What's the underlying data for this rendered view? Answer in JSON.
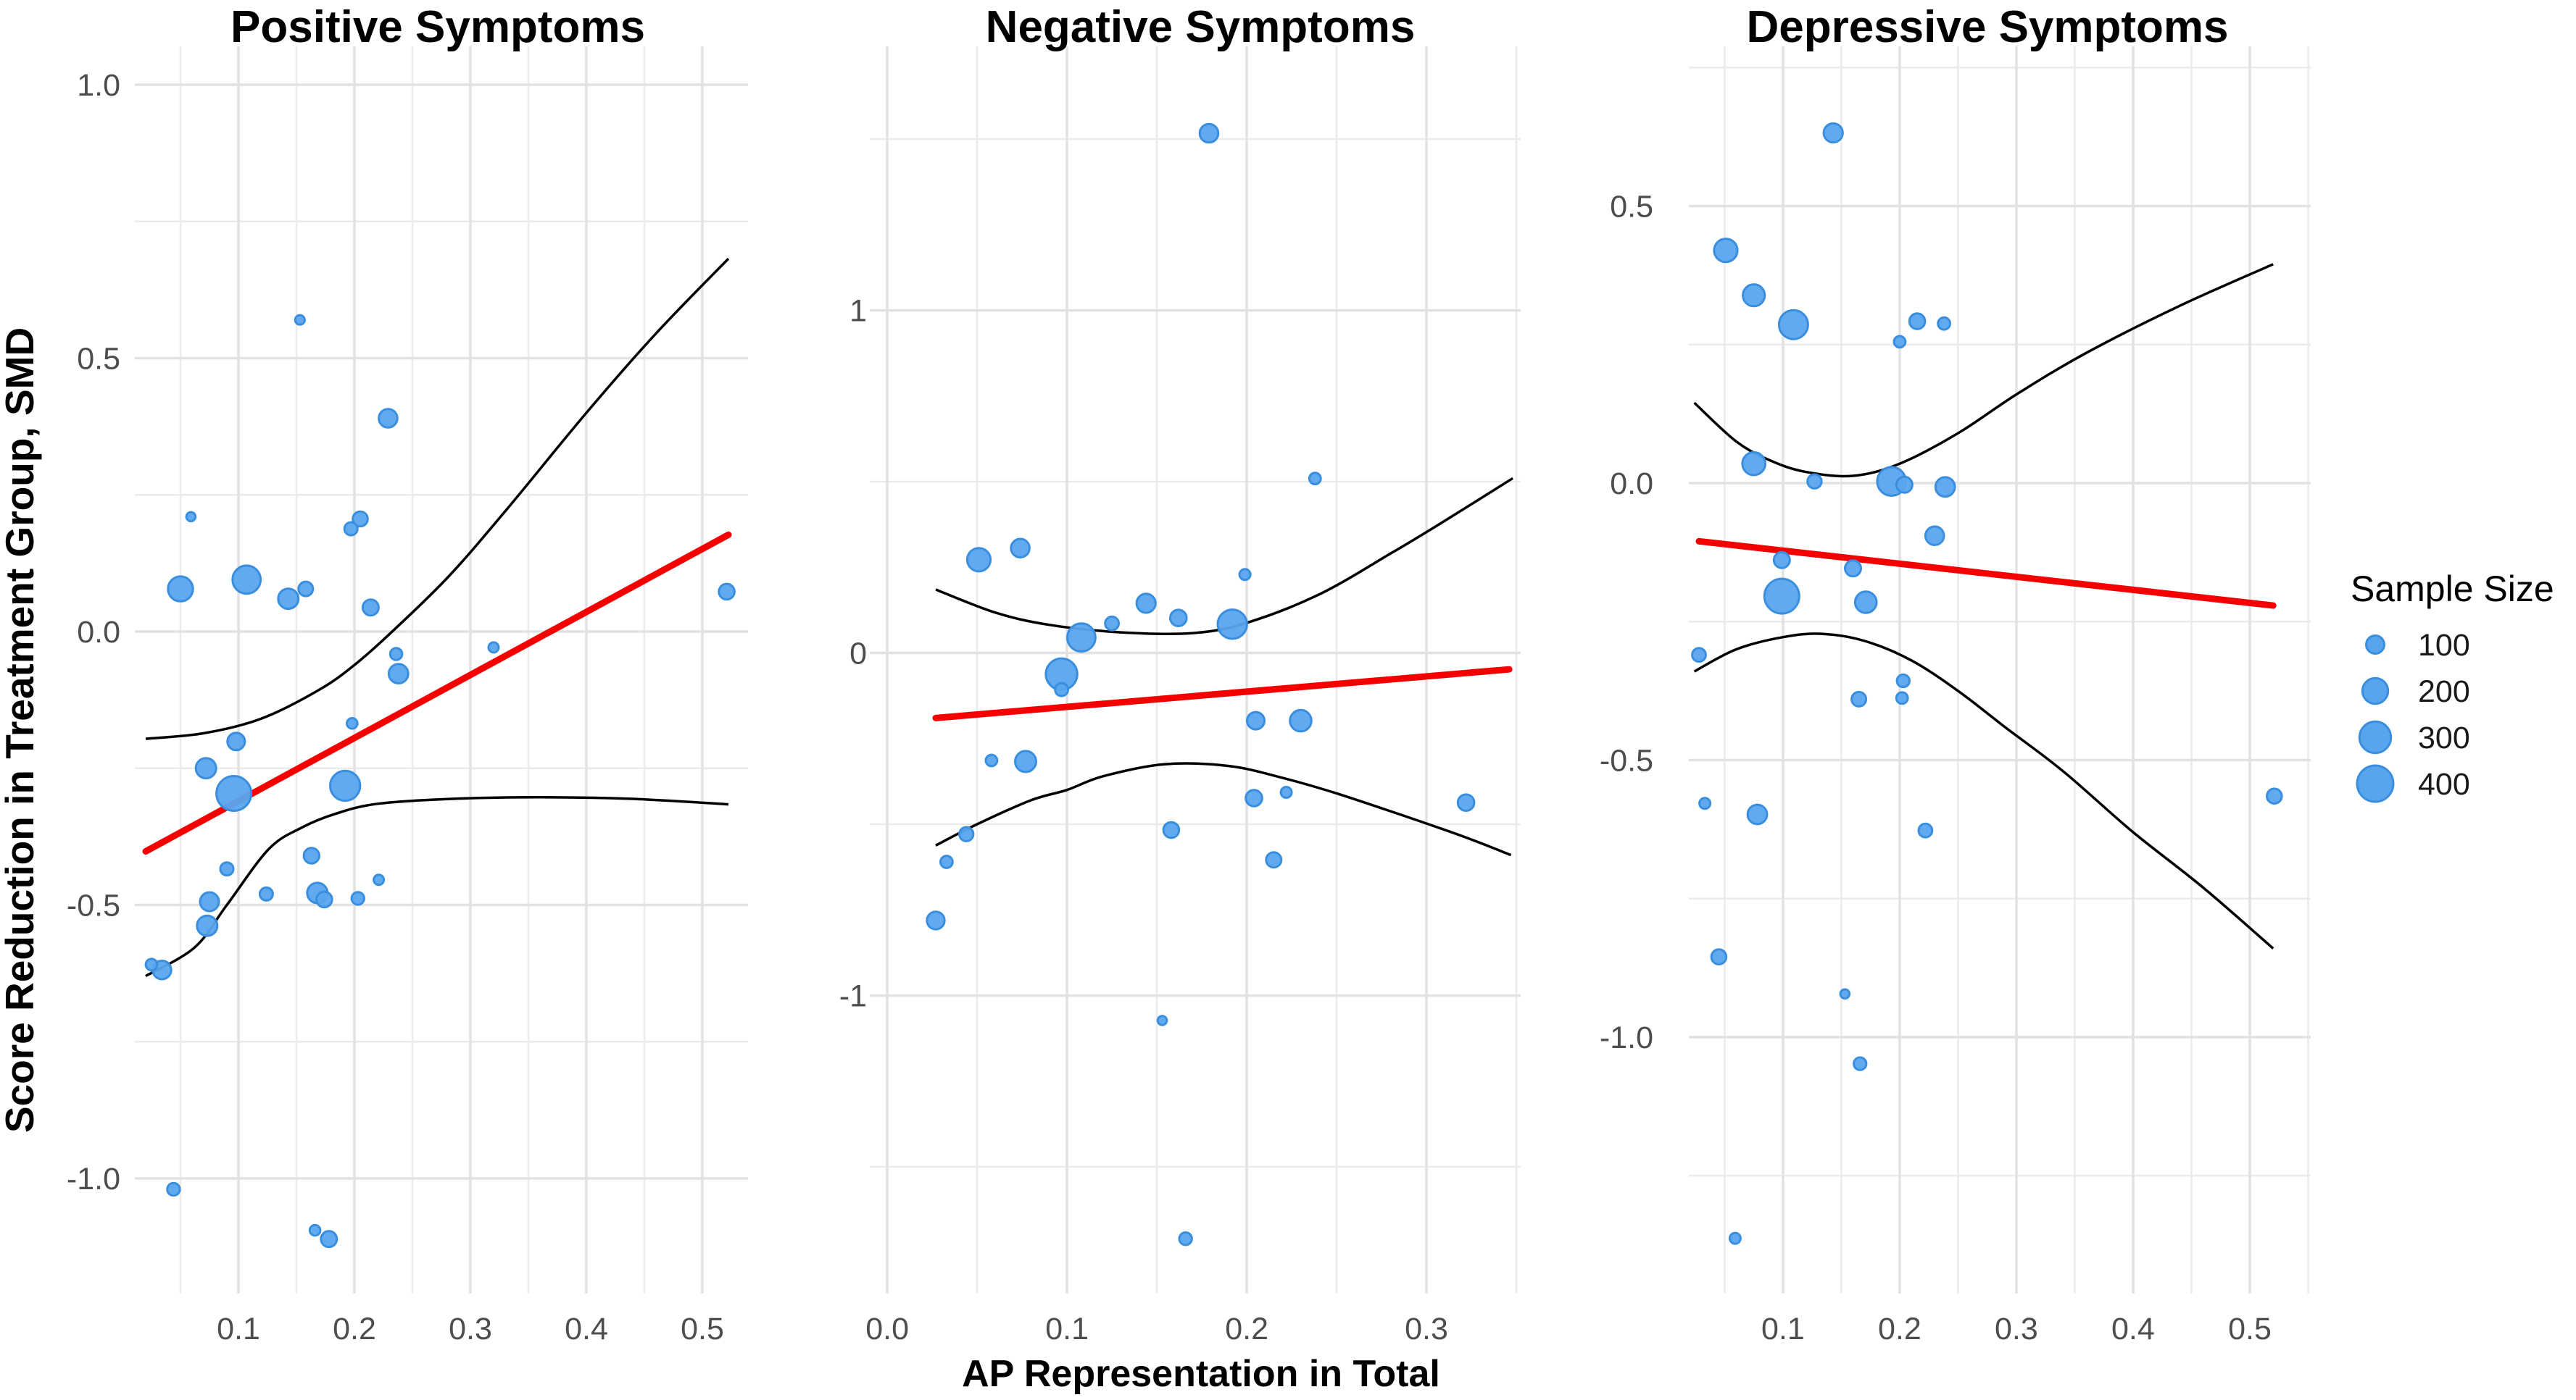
{
  "figure": {
    "y_axis_title": "Score Reduction in Treatment Group, SMD",
    "x_axis_title": "AP Representation in Total",
    "legend": {
      "title": "Sample Size",
      "items": [
        100,
        200,
        300,
        400
      ]
    },
    "colors": {
      "point_fill": "#58a5ee",
      "point_stroke": "#3a8ede",
      "regression": "#f40000",
      "ci_line": "#000000",
      "grid_major": "#e2e2e2",
      "grid_minor": "#ebebeb",
      "tick_text": "#4d4d4d",
      "background": "#ffffff"
    }
  },
  "chart_data": [
    {
      "type": "scatter",
      "title": "Positive Symptoms",
      "xlabel": "AP Representation in Total",
      "ylabel": "Score Reduction in Treatment Group, SMD",
      "xlim": [
        0.0106,
        0.5394
      ],
      "ylim": [
        -1.2106,
        1.0702
      ],
      "x_ticks": [
        {
          "v": 0.1,
          "label": "0.1"
        },
        {
          "v": 0.2,
          "label": "0.2"
        },
        {
          "v": 0.3,
          "label": "0.3"
        },
        {
          "v": 0.4,
          "label": "0.4"
        },
        {
          "v": 0.5,
          "label": "0.5"
        }
      ],
      "y_ticks": [
        {
          "v": 1.0,
          "label": "1.0"
        },
        {
          "v": 0.5,
          "label": "0.5"
        },
        {
          "v": 0.0,
          "label": "0.0"
        },
        {
          "v": -0.5,
          "label": "-0.5"
        },
        {
          "v": -1.0,
          "label": "-1.0"
        }
      ],
      "grid": true,
      "legend_position": "right-of-figure",
      "points": [
        {
          "x": 0.153,
          "y": 0.57,
          "n": 28
        },
        {
          "x": 0.229,
          "y": 0.39,
          "n": 105
        },
        {
          "x": 0.059,
          "y": 0.21,
          "n": 25
        },
        {
          "x": 0.205,
          "y": 0.206,
          "n": 68
        },
        {
          "x": 0.197,
          "y": 0.188,
          "n": 52
        },
        {
          "x": 0.05,
          "y": 0.078,
          "n": 190
        },
        {
          "x": 0.107,
          "y": 0.095,
          "n": 240
        },
        {
          "x": 0.143,
          "y": 0.06,
          "n": 125
        },
        {
          "x": 0.158,
          "y": 0.078,
          "n": 64
        },
        {
          "x": 0.214,
          "y": 0.044,
          "n": 77
        },
        {
          "x": 0.236,
          "y": -0.041,
          "n": 44
        },
        {
          "x": 0.238,
          "y": -0.077,
          "n": 115
        },
        {
          "x": 0.32,
          "y": -0.029,
          "n": 31
        },
        {
          "x": 0.521,
          "y": 0.073,
          "n": 75
        },
        {
          "x": 0.198,
          "y": -0.168,
          "n": 34
        },
        {
          "x": 0.098,
          "y": -0.201,
          "n": 92
        },
        {
          "x": 0.072,
          "y": -0.25,
          "n": 125
        },
        {
          "x": 0.096,
          "y": -0.296,
          "n": 370
        },
        {
          "x": 0.192,
          "y": -0.282,
          "n": 275
        },
        {
          "x": 0.163,
          "y": -0.41,
          "n": 73
        },
        {
          "x": 0.09,
          "y": -0.434,
          "n": 52
        },
        {
          "x": 0.124,
          "y": -0.48,
          "n": 52
        },
        {
          "x": 0.168,
          "y": -0.478,
          "n": 125
        },
        {
          "x": 0.174,
          "y": -0.49,
          "n": 74
        },
        {
          "x": 0.203,
          "y": -0.488,
          "n": 48
        },
        {
          "x": 0.221,
          "y": -0.454,
          "n": 31
        },
        {
          "x": 0.075,
          "y": -0.494,
          "n": 108
        },
        {
          "x": 0.073,
          "y": -0.538,
          "n": 125
        },
        {
          "x": 0.025,
          "y": -0.609,
          "n": 40
        },
        {
          "x": 0.034,
          "y": -0.619,
          "n": 105
        },
        {
          "x": 0.044,
          "y": -1.02,
          "n": 48
        },
        {
          "x": 0.166,
          "y": -1.095,
          "n": 34
        },
        {
          "x": 0.178,
          "y": -1.111,
          "n": 77
        }
      ],
      "regression": [
        [
          0.02,
          -0.402
        ],
        [
          0.5225,
          0.177
        ]
      ],
      "ci_upper": [
        [
          0.02,
          -0.196
        ],
        [
          0.07,
          -0.186
        ],
        [
          0.12,
          -0.159
        ],
        [
          0.17,
          -0.106
        ],
        [
          0.2,
          -0.061
        ],
        [
          0.23,
          -0.005
        ],
        [
          0.28,
          0.098
        ],
        [
          0.33,
          0.22
        ],
        [
          0.4,
          0.4
        ],
        [
          0.46,
          0.545
        ],
        [
          0.5225,
          0.682
        ]
      ],
      "ci_lower": [
        [
          0.02,
          -0.63
        ],
        [
          0.062,
          -0.578
        ],
        [
          0.09,
          -0.5
        ],
        [
          0.126,
          -0.398
        ],
        [
          0.155,
          -0.358
        ],
        [
          0.184,
          -0.333
        ],
        [
          0.22,
          -0.315
        ],
        [
          0.284,
          -0.306
        ],
        [
          0.36,
          -0.303
        ],
        [
          0.44,
          -0.306
        ],
        [
          0.5225,
          -0.316
        ]
      ]
    },
    {
      "type": "scatter",
      "title": "Negative Symptoms",
      "xlabel": "AP Representation in Total",
      "ylabel": "Score Reduction in Treatment Group, SMD",
      "xlim": [
        -0.0097,
        0.3524
      ],
      "ylim": [
        -1.87,
        1.7706
      ],
      "x_ticks": [
        {
          "v": 0.0,
          "label": "0.0"
        },
        {
          "v": 0.1,
          "label": "0.1"
        },
        {
          "v": 0.2,
          "label": "0.2"
        },
        {
          "v": 0.3,
          "label": "0.3"
        }
      ],
      "y_ticks": [
        {
          "v": 1,
          "label": "1"
        },
        {
          "v": 0,
          "label": "0"
        },
        {
          "v": -1,
          "label": "-1"
        }
      ],
      "grid": true,
      "points": [
        {
          "x": 0.179,
          "y": 1.517,
          "n": 105
        },
        {
          "x": 0.238,
          "y": 0.509,
          "n": 40
        },
        {
          "x": 0.051,
          "y": 0.272,
          "n": 165
        },
        {
          "x": 0.074,
          "y": 0.306,
          "n": 105
        },
        {
          "x": 0.199,
          "y": 0.229,
          "n": 36
        },
        {
          "x": 0.144,
          "y": 0.145,
          "n": 110
        },
        {
          "x": 0.162,
          "y": 0.102,
          "n": 82
        },
        {
          "x": 0.125,
          "y": 0.086,
          "n": 56
        },
        {
          "x": 0.108,
          "y": 0.045,
          "n": 240
        },
        {
          "x": 0.192,
          "y": 0.084,
          "n": 260
        },
        {
          "x": 0.097,
          "y": -0.062,
          "n": 300
        },
        {
          "x": 0.097,
          "y": -0.107,
          "n": 52
        },
        {
          "x": 0.205,
          "y": -0.198,
          "n": 92
        },
        {
          "x": 0.23,
          "y": -0.198,
          "n": 140
        },
        {
          "x": 0.058,
          "y": -0.314,
          "n": 40
        },
        {
          "x": 0.077,
          "y": -0.317,
          "n": 135
        },
        {
          "x": 0.204,
          "y": -0.424,
          "n": 82
        },
        {
          "x": 0.222,
          "y": -0.407,
          "n": 36
        },
        {
          "x": 0.322,
          "y": -0.437,
          "n": 82
        },
        {
          "x": 0.158,
          "y": -0.517,
          "n": 74
        },
        {
          "x": 0.044,
          "y": -0.529,
          "n": 60
        },
        {
          "x": 0.033,
          "y": -0.61,
          "n": 45
        },
        {
          "x": 0.215,
          "y": -0.604,
          "n": 70
        },
        {
          "x": 0.027,
          "y": -0.781,
          "n": 95
        },
        {
          "x": 0.153,
          "y": -1.073,
          "n": 25
        },
        {
          "x": 0.166,
          "y": -1.71,
          "n": 48
        }
      ],
      "regression": [
        [
          0.027,
          -0.19
        ],
        [
          0.346,
          -0.048
        ]
      ],
      "ci_upper": [
        [
          0.027,
          0.185
        ],
        [
          0.06,
          0.118
        ],
        [
          0.09,
          0.082
        ],
        [
          0.13,
          0.06
        ],
        [
          0.17,
          0.058
        ],
        [
          0.2,
          0.088
        ],
        [
          0.24,
          0.17
        ],
        [
          0.28,
          0.29
        ],
        [
          0.31,
          0.385
        ],
        [
          0.348,
          0.51
        ]
      ],
      "ci_lower": [
        [
          0.027,
          -0.562
        ],
        [
          0.05,
          -0.5
        ],
        [
          0.08,
          -0.43
        ],
        [
          0.1,
          -0.4
        ],
        [
          0.12,
          -0.36
        ],
        [
          0.154,
          -0.325
        ],
        [
          0.19,
          -0.33
        ],
        [
          0.22,
          -0.365
        ],
        [
          0.25,
          -0.41
        ],
        [
          0.29,
          -0.48
        ],
        [
          0.32,
          -0.535
        ],
        [
          0.347,
          -0.59
        ]
      ]
    },
    {
      "type": "scatter",
      "title": "Depressive Symptoms",
      "xlabel": "AP Representation in Total",
      "ylabel": "Score Reduction in Treatment Group, SMD",
      "xlim": [
        0.0193,
        0.5522
      ],
      "ylim": [
        -1.4627,
        0.7882
      ],
      "x_ticks": [
        {
          "v": 0.1,
          "label": "0.1"
        },
        {
          "v": 0.2,
          "label": "0.2"
        },
        {
          "v": 0.3,
          "label": "0.3"
        },
        {
          "v": 0.4,
          "label": "0.4"
        },
        {
          "v": 0.5,
          "label": "0.5"
        }
      ],
      "y_ticks": [
        {
          "v": 0.5,
          "label": "0.5"
        },
        {
          "v": 0.0,
          "label": "0.0"
        },
        {
          "v": -0.5,
          "label": "-0.5"
        },
        {
          "v": -1.0,
          "label": "-1.0"
        }
      ],
      "grid": true,
      "points": [
        {
          "x": 0.143,
          "y": 0.632,
          "n": 110
        },
        {
          "x": 0.051,
          "y": 0.42,
          "n": 165
        },
        {
          "x": 0.075,
          "y": 0.339,
          "n": 145
        },
        {
          "x": 0.109,
          "y": 0.286,
          "n": 255
        },
        {
          "x": 0.215,
          "y": 0.292,
          "n": 75
        },
        {
          "x": 0.2,
          "y": 0.255,
          "n": 40
        },
        {
          "x": 0.238,
          "y": 0.288,
          "n": 45
        },
        {
          "x": 0.075,
          "y": 0.035,
          "n": 160
        },
        {
          "x": 0.127,
          "y": 0.003,
          "n": 60
        },
        {
          "x": 0.193,
          "y": 0.003,
          "n": 250
        },
        {
          "x": 0.204,
          "y": -0.003,
          "n": 77
        },
        {
          "x": 0.239,
          "y": -0.007,
          "n": 115
        },
        {
          "x": 0.23,
          "y": -0.095,
          "n": 105
        },
        {
          "x": 0.099,
          "y": -0.139,
          "n": 77
        },
        {
          "x": 0.16,
          "y": -0.154,
          "n": 77
        },
        {
          "x": 0.099,
          "y": -0.204,
          "n": 370
        },
        {
          "x": 0.171,
          "y": -0.215,
          "n": 140
        },
        {
          "x": 0.028,
          "y": -0.31,
          "n": 56
        },
        {
          "x": 0.165,
          "y": -0.39,
          "n": 64
        },
        {
          "x": 0.203,
          "y": -0.357,
          "n": 48
        },
        {
          "x": 0.202,
          "y": -0.388,
          "n": 40
        },
        {
          "x": 0.033,
          "y": -0.578,
          "n": 36
        },
        {
          "x": 0.078,
          "y": -0.598,
          "n": 115
        },
        {
          "x": 0.222,
          "y": -0.627,
          "n": 56
        },
        {
          "x": 0.521,
          "y": -0.565,
          "n": 68
        },
        {
          "x": 0.045,
          "y": -0.855,
          "n": 68
        },
        {
          "x": 0.153,
          "y": -0.922,
          "n": 25
        },
        {
          "x": 0.166,
          "y": -1.048,
          "n": 48
        },
        {
          "x": 0.059,
          "y": -1.363,
          "n": 36
        }
      ],
      "regression": [
        [
          0.028,
          -0.105
        ],
        [
          0.52,
          -0.221
        ]
      ],
      "ci_upper": [
        [
          0.024,
          0.145
        ],
        [
          0.06,
          0.075
        ],
        [
          0.09,
          0.04
        ],
        [
          0.12,
          0.02
        ],
        [
          0.16,
          0.013
        ],
        [
          0.2,
          0.035
        ],
        [
          0.25,
          0.09
        ],
        [
          0.3,
          0.16
        ],
        [
          0.36,
          0.235
        ],
        [
          0.44,
          0.32
        ],
        [
          0.52,
          0.395
        ]
      ],
      "ci_lower": [
        [
          0.024,
          -0.34
        ],
        [
          0.06,
          -0.3
        ],
        [
          0.1,
          -0.278
        ],
        [
          0.133,
          -0.272
        ],
        [
          0.17,
          -0.285
        ],
        [
          0.21,
          -0.32
        ],
        [
          0.25,
          -0.375
        ],
        [
          0.29,
          -0.44
        ],
        [
          0.34,
          -0.52
        ],
        [
          0.4,
          -0.63
        ],
        [
          0.46,
          -0.73
        ],
        [
          0.52,
          -0.84
        ]
      ]
    }
  ]
}
